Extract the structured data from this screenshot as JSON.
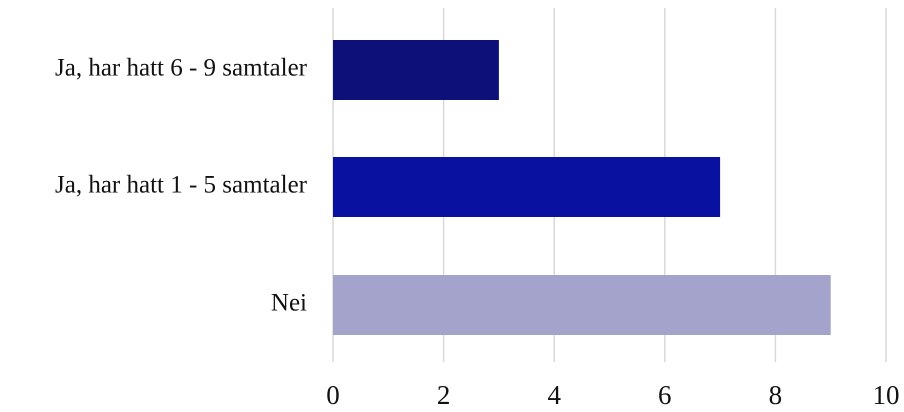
{
  "chart_data": {
    "type": "bar",
    "orientation": "horizontal",
    "categories": [
      "Ja, har hatt 6 - 9 samtaler",
      "Ja, har hatt 1 - 5 samtaler",
      "Nei"
    ],
    "values": [
      3,
      7,
      9
    ],
    "bar_colors": [
      "#0c1078",
      "#0912a0",
      "#a3a3cb"
    ],
    "xlim": [
      0,
      10
    ],
    "xticks": [
      "0",
      "2",
      "4",
      "6",
      "8",
      "10"
    ],
    "grid": true,
    "title": "",
    "xlabel": "",
    "ylabel": ""
  }
}
